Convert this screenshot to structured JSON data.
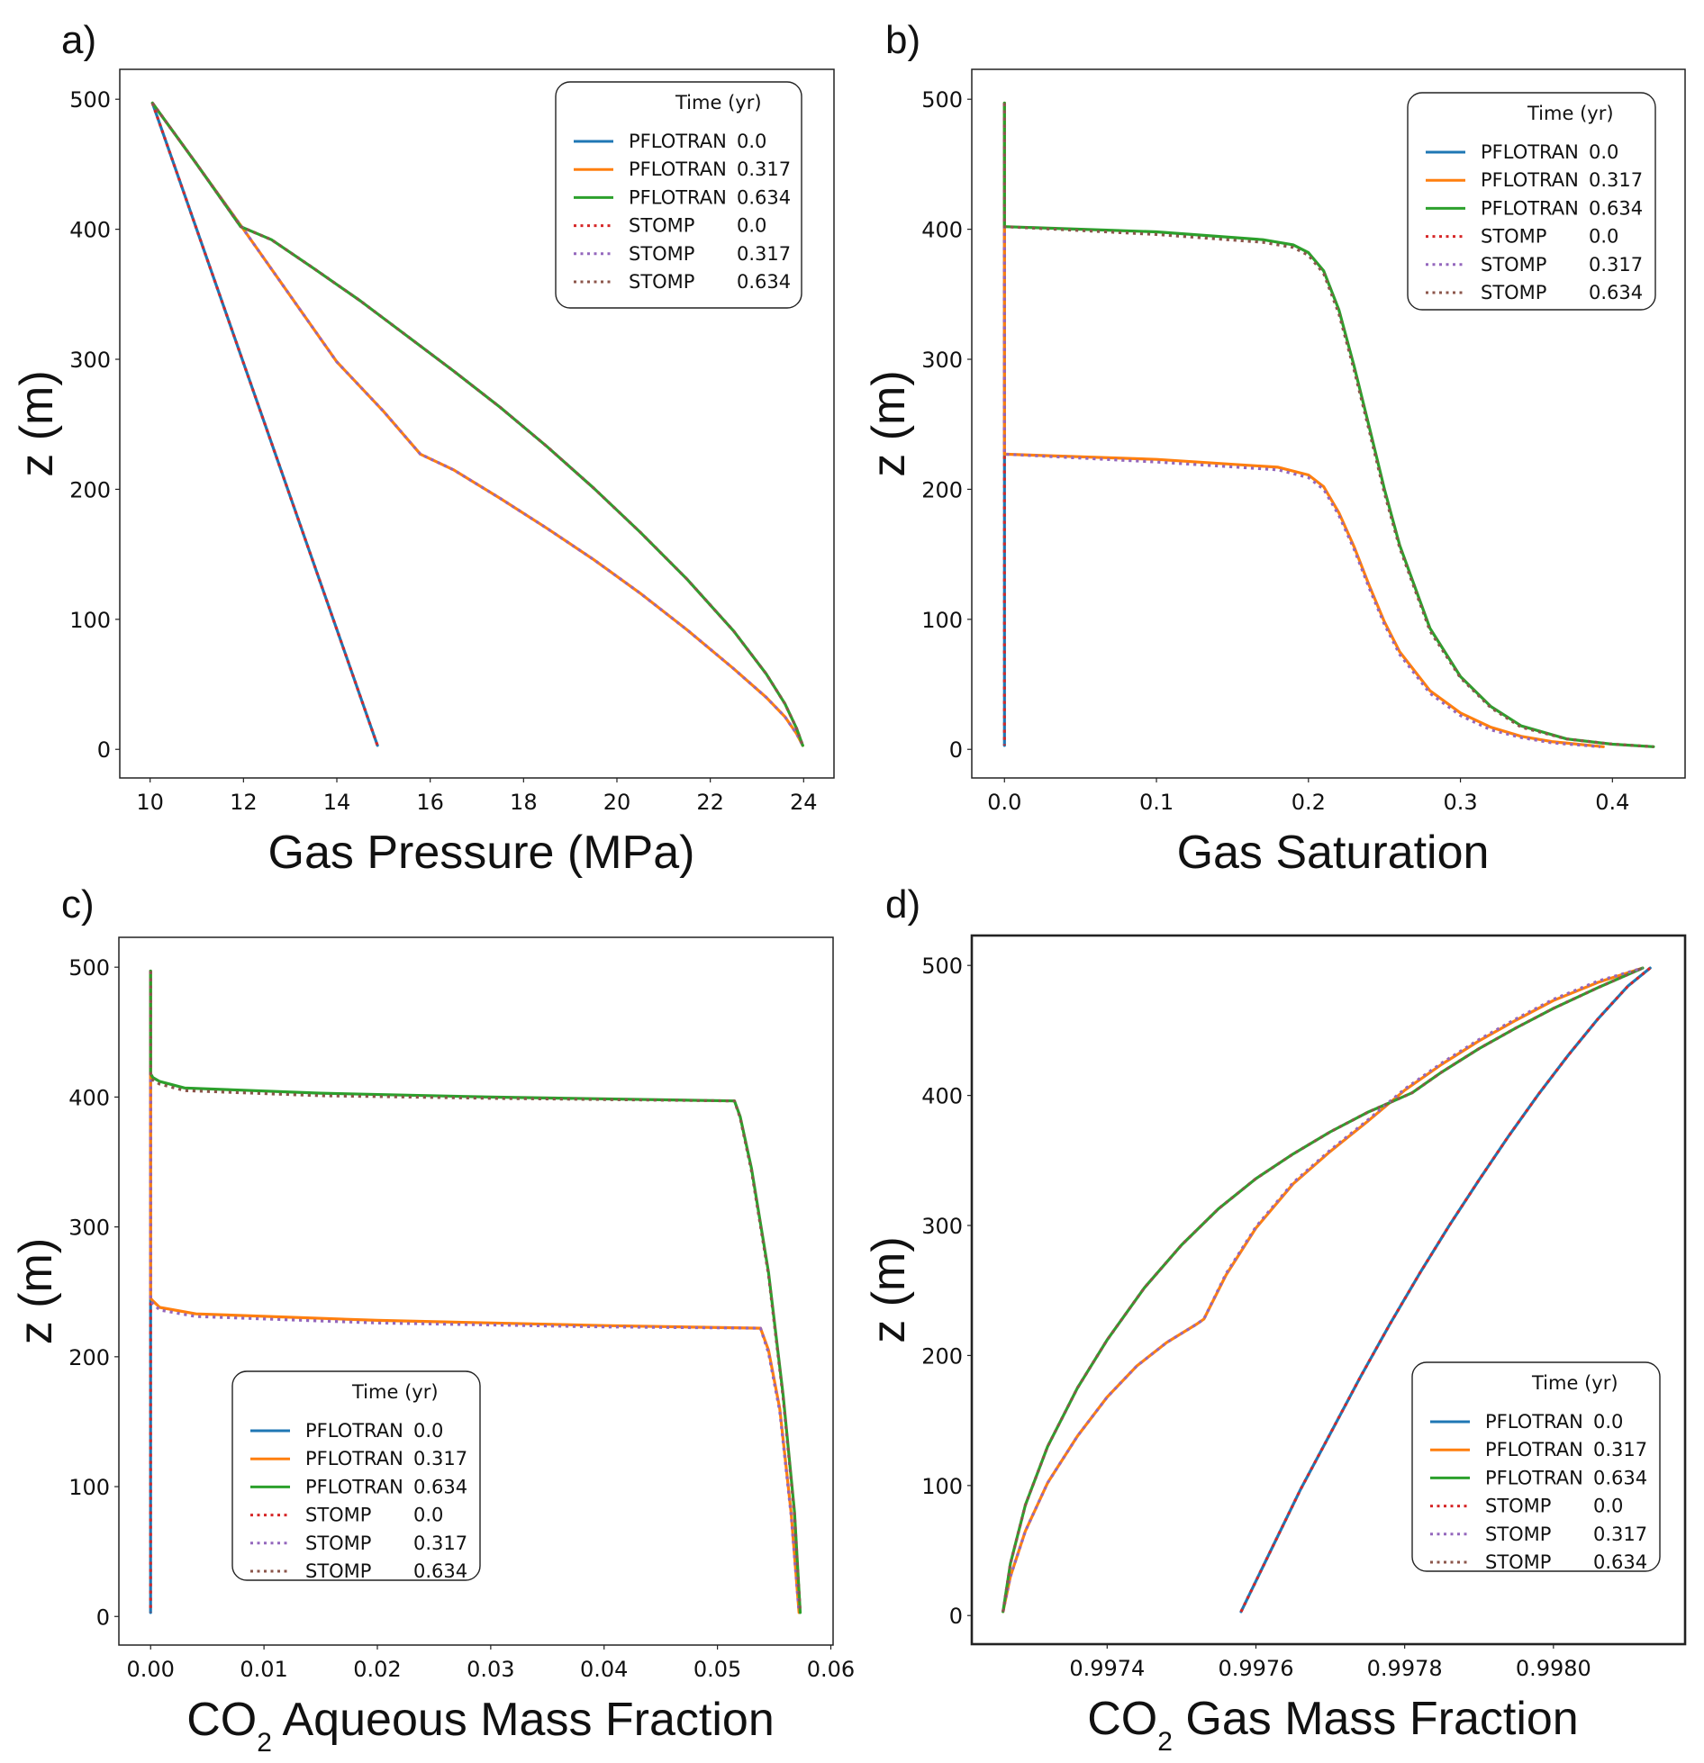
{
  "figure": {
    "description": "Four-panel comparison of PFLOTRAN and STOMP vertical profiles at three times"
  },
  "legend_common": {
    "title": "Time (yr)",
    "entries": [
      {
        "simulator": "PFLOTRAN",
        "time": "0.0",
        "color": "#1f77b4",
        "style": "solid"
      },
      {
        "simulator": "PFLOTRAN",
        "time": "0.317",
        "color": "#ff7f0e",
        "style": "solid"
      },
      {
        "simulator": "PFLOTRAN",
        "time": "0.634",
        "color": "#2ca02c",
        "style": "solid"
      },
      {
        "simulator": "STOMP",
        "time": "0.0",
        "color": "#d62728",
        "style": "dotted"
      },
      {
        "simulator": "STOMP",
        "time": "0.317",
        "color": "#9467bd",
        "style": "dotted"
      },
      {
        "simulator": "STOMP",
        "time": "0.634",
        "color": "#8c564b",
        "style": "dotted"
      }
    ]
  },
  "chart_data": [
    {
      "id": "a",
      "panel_label": "a)",
      "type": "line",
      "title": "",
      "xlabel": "Gas Pressure (MPa)",
      "xlabel_sub": "",
      "xlabel_rest": "",
      "ylabel": "z (m)",
      "xlim": [
        9.35,
        24.65
      ],
      "ylim": [
        -22,
        523
      ],
      "xticks": [
        10,
        12,
        14,
        16,
        18,
        20,
        22,
        24
      ],
      "xtick_labels": [
        "10",
        "12",
        "14",
        "16",
        "18",
        "20",
        "22",
        "24"
      ],
      "yticks": [
        0,
        100,
        200,
        300,
        400,
        500
      ],
      "ytick_labels": [
        "0",
        "100",
        "200",
        "300",
        "400",
        "500"
      ],
      "grid": false,
      "legend_position": "upper-right",
      "series": [
        {
          "name": "PFLOTRAN 0.0",
          "x": [
            10.05,
            14.87
          ],
          "z": [
            497,
            3
          ]
        },
        {
          "name": "PFLOTRAN 0.317",
          "x": [
            10.05,
            11.0,
            12.0,
            13.0,
            14.0,
            15.0,
            15.79,
            16.5,
            17.5,
            18.5,
            19.5,
            20.5,
            21.5,
            22.5,
            23.2,
            23.6,
            23.85,
            23.98
          ],
          "z": [
            497,
            450,
            400,
            349,
            298,
            260,
            227,
            215,
            193,
            170,
            146,
            120,
            92,
            62,
            40,
            25,
            12,
            3
          ]
        },
        {
          "name": "PFLOTRAN 0.634",
          "x": [
            10.05,
            11.0,
            11.94,
            12.6,
            13.5,
            14.5,
            15.5,
            16.5,
            17.5,
            18.5,
            19.5,
            20.5,
            21.5,
            22.5,
            23.2,
            23.6,
            23.85,
            23.98
          ],
          "z": [
            497,
            450,
            402,
            392,
            370,
            345,
            318,
            291,
            263,
            233,
            201,
            167,
            131,
            91,
            58,
            35,
            16,
            3
          ]
        },
        {
          "name": "STOMP 0.0",
          "x": [
            10.05,
            14.87
          ],
          "z": [
            497,
            3
          ]
        },
        {
          "name": "STOMP 0.317",
          "x": [
            10.05,
            11.0,
            12.0,
            13.0,
            14.0,
            15.0,
            15.79,
            16.5,
            17.5,
            18.5,
            19.5,
            20.5,
            21.5,
            22.5,
            23.2,
            23.6,
            23.85,
            23.98
          ],
          "z": [
            497,
            450,
            400,
            349,
            298,
            260,
            227,
            215,
            193,
            170,
            146,
            120,
            92,
            62,
            40,
            25,
            12,
            3
          ]
        },
        {
          "name": "STOMP 0.634",
          "x": [
            10.05,
            11.0,
            11.94,
            12.6,
            13.5,
            14.5,
            15.5,
            16.5,
            17.5,
            18.5,
            19.5,
            20.5,
            21.5,
            22.5,
            23.2,
            23.6,
            23.85,
            23.98
          ],
          "z": [
            497,
            450,
            402,
            392,
            370,
            345,
            318,
            291,
            263,
            233,
            201,
            167,
            131,
            91,
            58,
            35,
            16,
            3
          ]
        }
      ]
    },
    {
      "id": "b",
      "panel_label": "b)",
      "type": "line",
      "title": "",
      "xlabel": "Gas Saturation",
      "xlabel_sub": "",
      "xlabel_rest": "",
      "ylabel": "z (m)",
      "xlim": [
        -0.0215,
        0.4478
      ],
      "ylim": [
        -22,
        523
      ],
      "xticks": [
        0.0,
        0.1,
        0.2,
        0.3,
        0.4
      ],
      "xtick_labels": [
        "0.0",
        "0.1",
        "0.2",
        "0.3",
        "0.4"
      ],
      "yticks": [
        0,
        100,
        200,
        300,
        400,
        500
      ],
      "ytick_labels": [
        "0",
        "100",
        "200",
        "300",
        "400",
        "500"
      ],
      "grid": false,
      "legend_position": "upper-right",
      "series": [
        {
          "name": "PFLOTRAN 0.0",
          "x": [
            0.0,
            0.0
          ],
          "z": [
            497,
            3
          ]
        },
        {
          "name": "PFLOTRAN 0.317",
          "x": [
            0.0,
            0.0,
            0.1,
            0.18,
            0.2,
            0.21,
            0.22,
            0.23,
            0.24,
            0.25,
            0.26,
            0.28,
            0.3,
            0.32,
            0.34,
            0.36,
            0.394
          ],
          "z": [
            497,
            227,
            223,
            217,
            211,
            202,
            182,
            156,
            126,
            98,
            75,
            45,
            28,
            17,
            10,
            6,
            2
          ]
        },
        {
          "name": "PFLOTRAN 0.634",
          "x": [
            0.0,
            0.0,
            0.1,
            0.17,
            0.19,
            0.2,
            0.21,
            0.22,
            0.23,
            0.24,
            0.25,
            0.26,
            0.28,
            0.3,
            0.32,
            0.34,
            0.37,
            0.4,
            0.427
          ],
          "z": [
            497,
            402,
            398,
            392,
            388,
            382,
            368,
            338,
            295,
            248,
            200,
            157,
            93,
            56,
            33,
            18,
            8,
            4,
            2
          ]
        },
        {
          "name": "STOMP 0.0",
          "x": [
            0.0,
            0.0
          ],
          "z": [
            497,
            3
          ]
        },
        {
          "name": "STOMP 0.317",
          "x": [
            0.0,
            0.0,
            0.1,
            0.18,
            0.2,
            0.21,
            0.22,
            0.23,
            0.24,
            0.25,
            0.26,
            0.28,
            0.3,
            0.32,
            0.34,
            0.36,
            0.392
          ],
          "z": [
            497,
            227,
            221,
            215,
            209,
            200,
            180,
            154,
            124,
            96,
            73,
            43,
            26,
            15,
            9,
            5,
            2
          ]
        },
        {
          "name": "STOMP 0.634",
          "x": [
            0.0,
            0.0,
            0.1,
            0.17,
            0.19,
            0.2,
            0.21,
            0.22,
            0.23,
            0.24,
            0.25,
            0.26,
            0.28,
            0.3,
            0.32,
            0.34,
            0.37,
            0.4,
            0.427
          ],
          "z": [
            497,
            402,
            396,
            390,
            386,
            380,
            366,
            335,
            292,
            245,
            197,
            155,
            91,
            55,
            32,
            17,
            8,
            4,
            2
          ]
        }
      ]
    },
    {
      "id": "c",
      "panel_label": "c)",
      "type": "line",
      "title": "",
      "xlabel": "CO",
      "xlabel_sub": "2",
      "xlabel_rest": " Aqueous Mass Fraction",
      "ylabel": "z (m)",
      "xlim": [
        -0.0028,
        0.0602
      ],
      "ylim": [
        -22,
        523
      ],
      "xticks": [
        0.0,
        0.01,
        0.02,
        0.03,
        0.04,
        0.05,
        0.06
      ],
      "xtick_labels": [
        "0.00",
        "0.01",
        "0.02",
        "0.03",
        "0.04",
        "0.05",
        "0.06"
      ],
      "yticks": [
        0,
        100,
        200,
        300,
        400,
        500
      ],
      "ytick_labels": [
        "0",
        "100",
        "200",
        "300",
        "400",
        "500"
      ],
      "grid": false,
      "legend_position": "lower-left",
      "series": [
        {
          "name": "PFLOTRAN 0.0",
          "x": [
            0.0,
            0.0
          ],
          "z": [
            497,
            3
          ]
        },
        {
          "name": "PFLOTRAN 0.317",
          "x": [
            0.0,
            0.0,
            0.0002,
            0.0008,
            0.004,
            0.02,
            0.04,
            0.0538,
            0.0545,
            0.0555,
            0.0565,
            0.0572
          ],
          "z": [
            497,
            245,
            243,
            238,
            233,
            228,
            224,
            222,
            205,
            160,
            80,
            3
          ]
        },
        {
          "name": "PFLOTRAN 0.634",
          "x": [
            0.0,
            0.0,
            0.0002,
            0.0008,
            0.003,
            0.015,
            0.03,
            0.0515,
            0.052,
            0.053,
            0.0545,
            0.0558,
            0.0568,
            0.0573
          ],
          "z": [
            497,
            418,
            415,
            412,
            407,
            403,
            400,
            397,
            385,
            345,
            265,
            170,
            80,
            3
          ]
        },
        {
          "name": "STOMP 0.0",
          "x": [
            0.0,
            0.0
          ],
          "z": [
            497,
            3
          ]
        },
        {
          "name": "STOMP 0.317",
          "x": [
            0.0,
            0.0,
            0.0002,
            0.0008,
            0.004,
            0.02,
            0.04,
            0.0538,
            0.0545,
            0.0555,
            0.0565,
            0.0572
          ],
          "z": [
            497,
            243,
            241,
            236,
            231,
            226,
            223,
            222,
            203,
            158,
            78,
            3
          ]
        },
        {
          "name": "STOMP 0.634",
          "x": [
            0.0,
            0.0,
            0.0002,
            0.0008,
            0.003,
            0.015,
            0.03,
            0.0515,
            0.052,
            0.053,
            0.0545,
            0.0558,
            0.0568,
            0.0573
          ],
          "z": [
            497,
            416,
            413,
            410,
            405,
            401,
            399,
            397,
            384,
            343,
            263,
            168,
            78,
            3
          ]
        }
      ]
    },
    {
      "id": "d",
      "panel_label": "d)",
      "type": "line",
      "title": "",
      "xlabel": "CO",
      "xlabel_sub": "2",
      "xlabel_rest": " Gas Mass Fraction",
      "ylabel": "z (m)",
      "xlim": [
        0.997218,
        0.998177
      ],
      "ylim": [
        -22,
        523
      ],
      "xticks": [
        0.9974,
        0.9976,
        0.9978,
        0.998
      ],
      "xtick_labels": [
        "0.9974",
        "0.9976",
        "0.9978",
        "0.9980"
      ],
      "yticks": [
        0,
        100,
        200,
        300,
        400,
        500
      ],
      "ytick_labels": [
        "0",
        "100",
        "200",
        "300",
        "400",
        "500"
      ],
      "grid": false,
      "legend_position": "lower-right",
      "series": [
        {
          "name": "PFLOTRAN 0.0",
          "x": [
            0.99758,
            0.99762,
            0.99766,
            0.9977,
            0.99774,
            0.99778,
            0.99782,
            0.99786,
            0.9979,
            0.99794,
            0.99798,
            0.99802,
            0.99806,
            0.9981,
            0.99813
          ],
          "z": [
            3,
            50,
            97,
            140,
            183,
            224,
            263,
            300,
            335,
            369,
            401,
            431,
            459,
            484,
            498
          ]
        },
        {
          "name": "PFLOTRAN 0.317",
          "x": [
            0.99726,
            0.99727,
            0.99729,
            0.99732,
            0.99736,
            0.9974,
            0.99744,
            0.99748,
            0.99752,
            0.99753,
            0.99756,
            0.9976,
            0.99765,
            0.9977,
            0.99775,
            0.9978,
            0.99785,
            0.9979,
            0.99795,
            0.998,
            0.99806,
            0.99812
          ],
          "z": [
            3,
            30,
            65,
            102,
            138,
            168,
            192,
            210,
            224,
            228,
            262,
            298,
            332,
            357,
            380,
            404,
            424,
            442,
            458,
            473,
            487,
            498
          ]
        },
        {
          "name": "PFLOTRAN 0.634",
          "x": [
            0.99726,
            0.99727,
            0.99729,
            0.99732,
            0.99736,
            0.9974,
            0.99745,
            0.9975,
            0.99755,
            0.9976,
            0.99765,
            0.9977,
            0.99775,
            0.99781,
            0.99785,
            0.9979,
            0.99795,
            0.998,
            0.99806,
            0.99812
          ],
          "z": [
            3,
            40,
            85,
            130,
            175,
            212,
            252,
            285,
            313,
            336,
            355,
            372,
            387,
            402,
            418,
            436,
            452,
            467,
            483,
            498
          ]
        },
        {
          "name": "STOMP 0.0",
          "x": [
            0.99758,
            0.99762,
            0.99766,
            0.9977,
            0.99774,
            0.99778,
            0.99782,
            0.99786,
            0.9979,
            0.99794,
            0.99798,
            0.99802,
            0.99806,
            0.9981,
            0.99813
          ],
          "z": [
            3,
            50,
            97,
            140,
            183,
            224,
            263,
            300,
            335,
            369,
            401,
            431,
            459,
            484,
            498
          ]
        },
        {
          "name": "STOMP 0.317",
          "x": [
            0.99726,
            0.99727,
            0.99729,
            0.99732,
            0.99736,
            0.9974,
            0.99744,
            0.99748,
            0.99752,
            0.99753,
            0.99756,
            0.9976,
            0.99765,
            0.9977,
            0.99775,
            0.9978,
            0.99785,
            0.9979,
            0.99795,
            0.998,
            0.99806,
            0.99812
          ],
          "z": [
            3,
            30,
            65,
            102,
            138,
            168,
            192,
            210,
            224,
            228,
            263,
            299,
            333,
            358,
            381,
            405,
            425,
            443,
            459,
            474,
            488,
            498
          ]
        },
        {
          "name": "STOMP 0.634",
          "x": [
            0.99726,
            0.99727,
            0.99729,
            0.99732,
            0.99736,
            0.9974,
            0.99745,
            0.9975,
            0.99755,
            0.9976,
            0.99765,
            0.9977,
            0.99775,
            0.99781,
            0.99785,
            0.9979,
            0.99795,
            0.998,
            0.99806,
            0.99812
          ],
          "z": [
            3,
            40,
            85,
            130,
            175,
            212,
            252,
            285,
            313,
            336,
            355,
            372,
            387,
            402,
            418,
            436,
            452,
            467,
            483,
            498
          ]
        }
      ]
    }
  ]
}
